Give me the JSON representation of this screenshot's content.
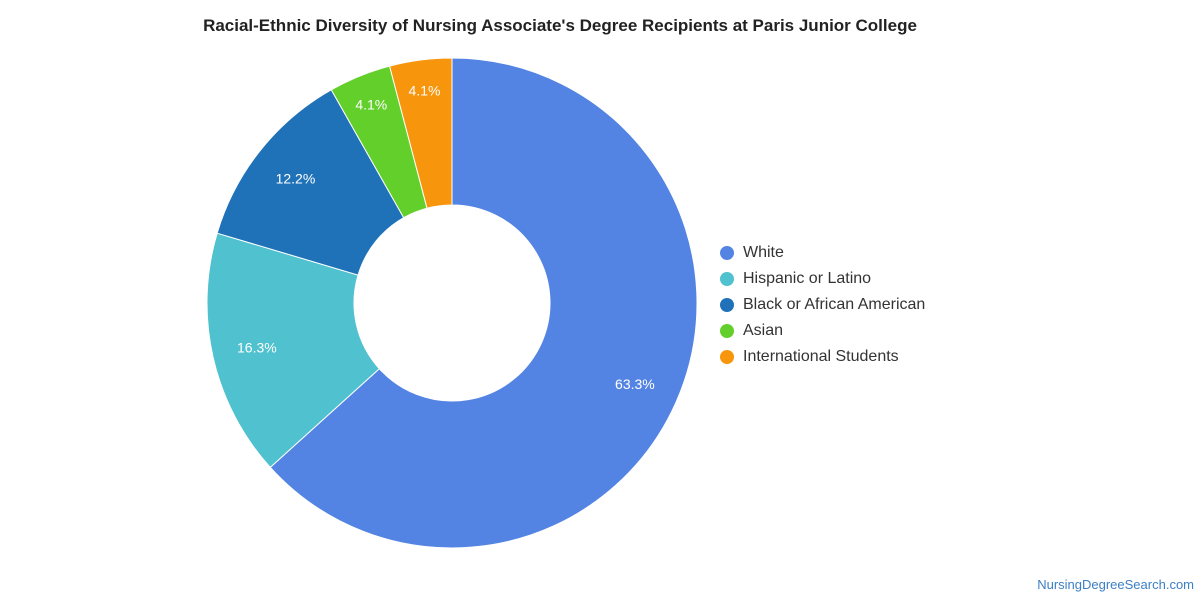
{
  "chart_data": {
    "type": "pie",
    "title": "Racial-Ethnic Diversity of Nursing Associate's Degree Recipients at Paris Junior College",
    "donut": true,
    "legend_position": "right",
    "slices": [
      {
        "label": "White",
        "value": 63.3,
        "display": "63.3%",
        "color": "#5484e3"
      },
      {
        "label": "Hispanic or Latino",
        "value": 16.3,
        "display": "16.3%",
        "color": "#50c1ce"
      },
      {
        "label": "Black or African American",
        "value": 12.2,
        "display": "12.2%",
        "color": "#1f72b8"
      },
      {
        "label": "Asian",
        "value": 4.1,
        "display": "4.1%",
        "color": "#62cf2a"
      },
      {
        "label": "International Students",
        "value": 4.1,
        "display": "4.1%",
        "color": "#f7960c"
      }
    ]
  },
  "watermark": "NursingDegreeSearch.com"
}
